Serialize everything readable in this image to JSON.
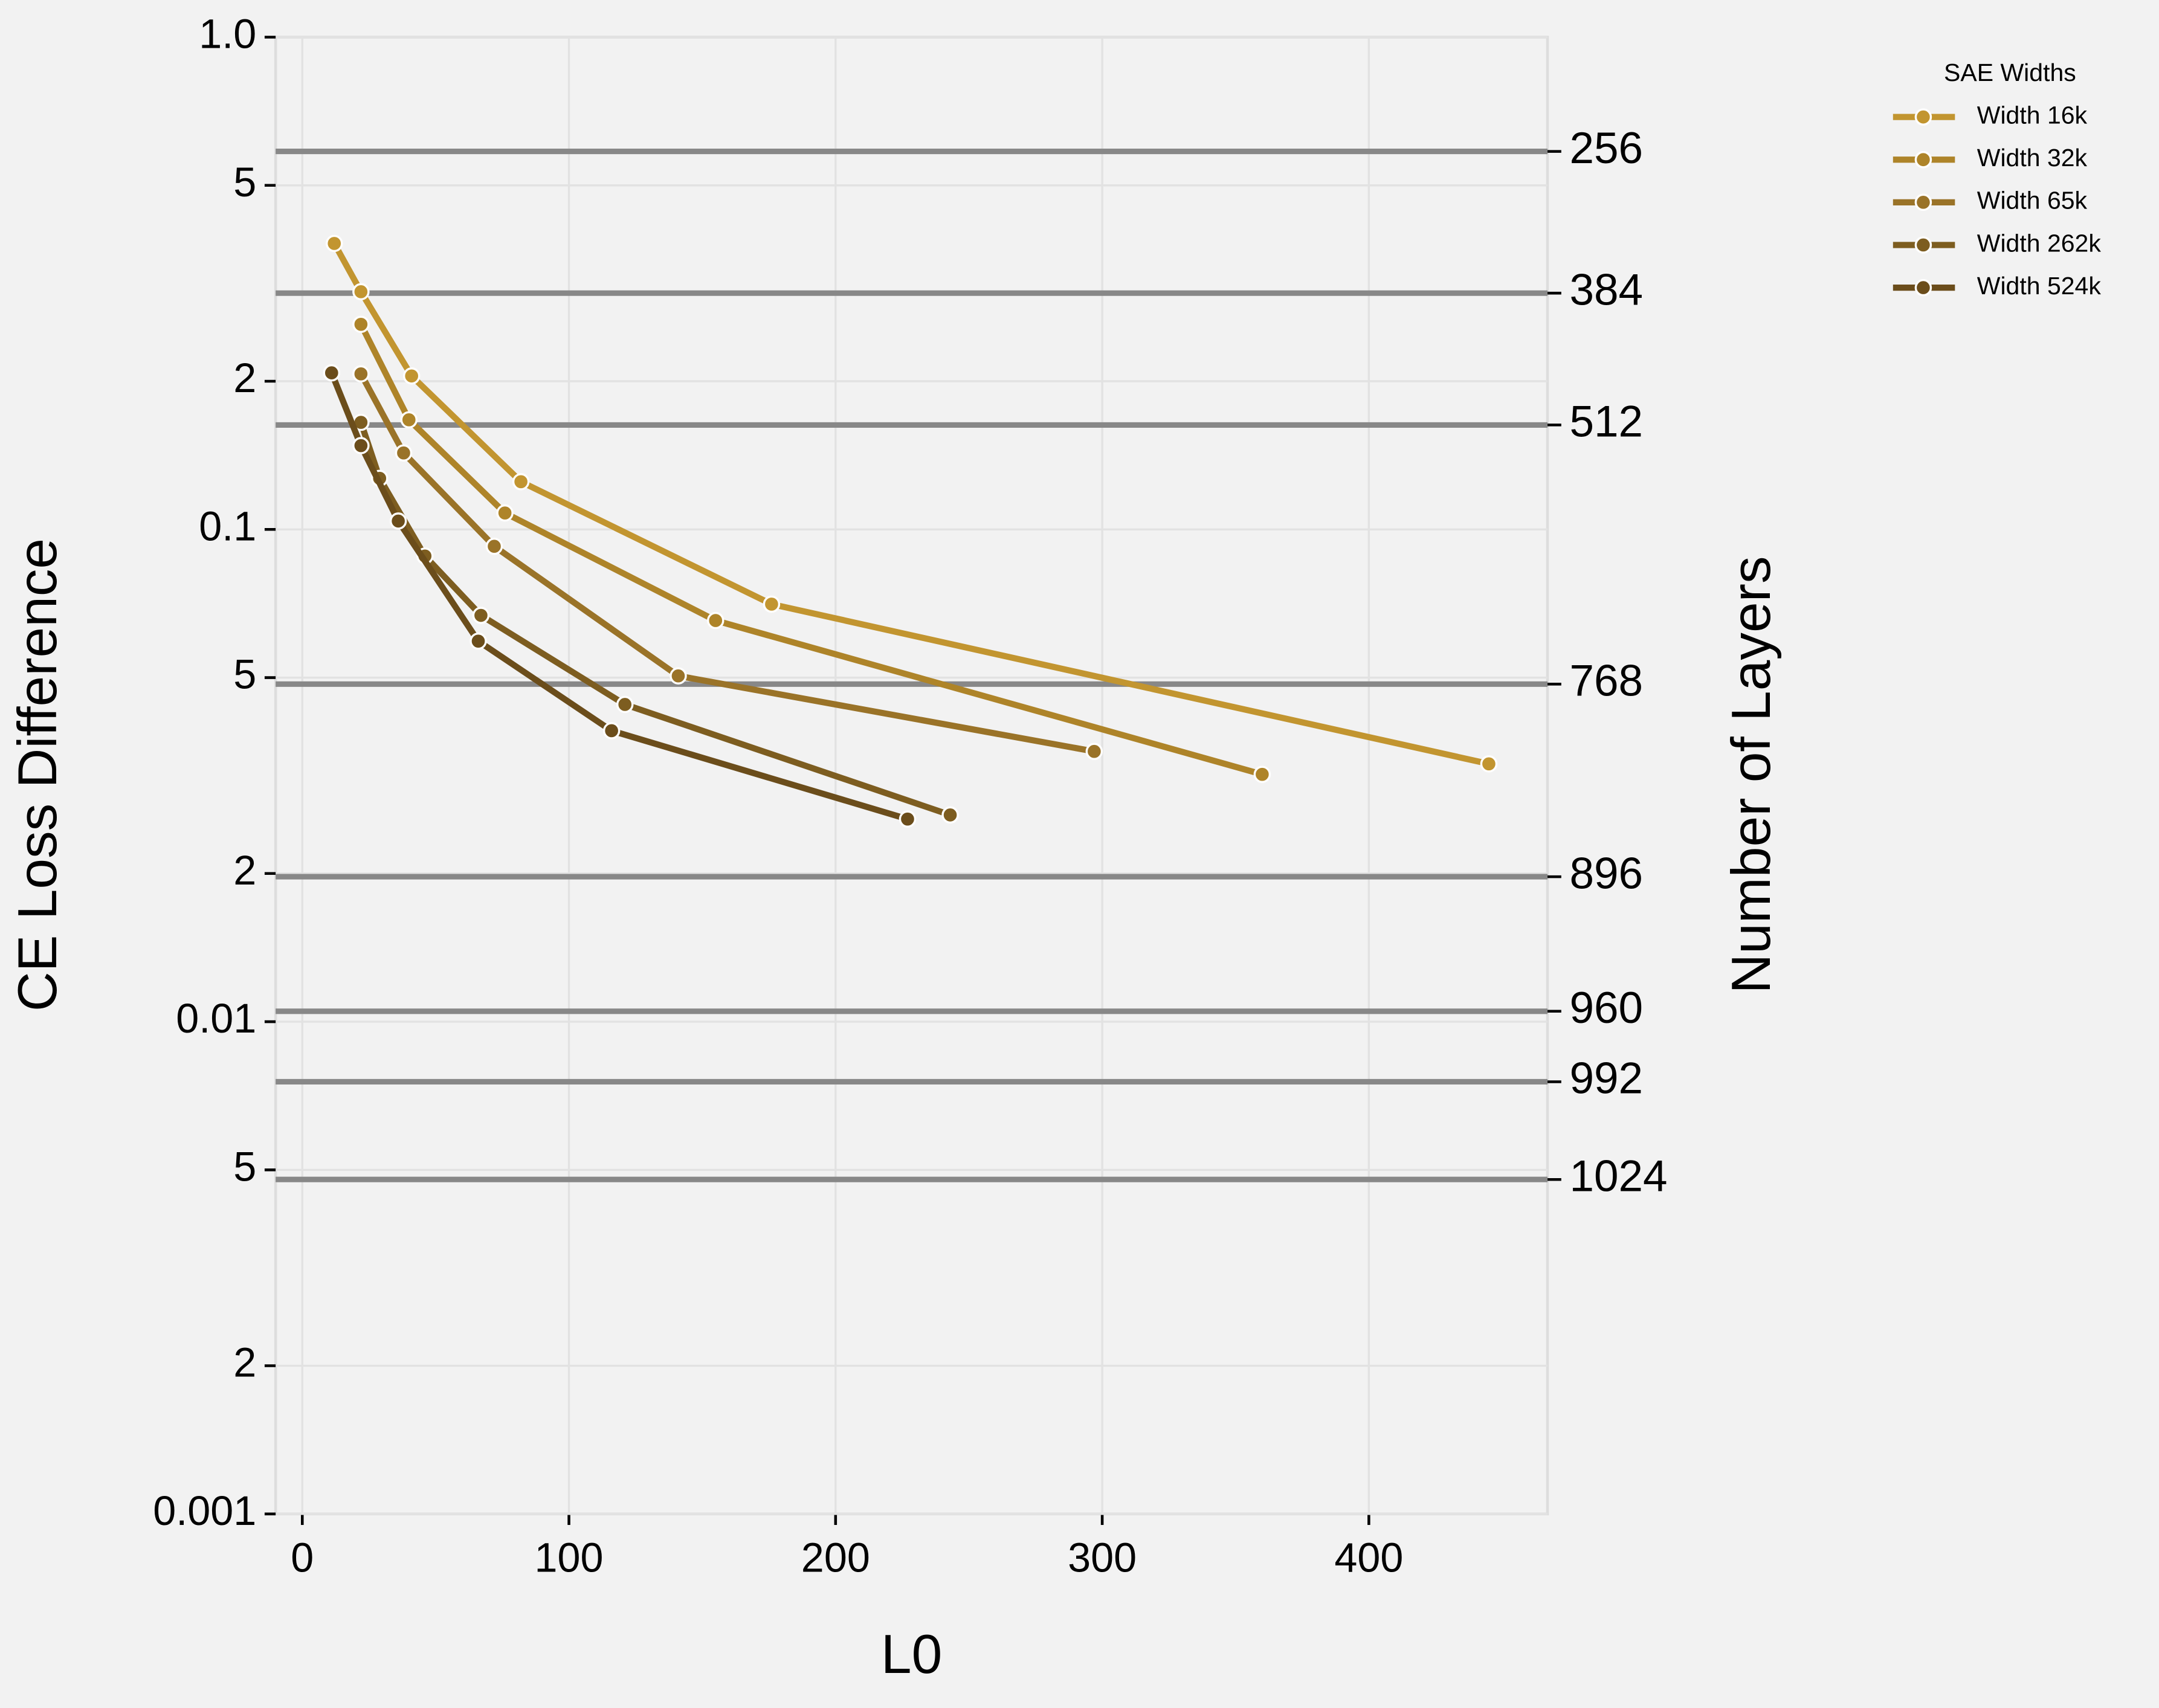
{
  "chart_data": {
    "type": "line",
    "xlabel": "L0",
    "ylabel": "CE Loss Difference",
    "y2label": "Number of Layers",
    "legend_title": "SAE Widths",
    "legend": "outside-right",
    "log_y": true,
    "grid": true,
    "xlim": [
      -10,
      467
    ],
    "xticks": [
      0,
      100,
      200,
      300,
      400
    ],
    "ylim": [
      0.001,
      1
    ],
    "yticks": [
      {
        "value": 1,
        "label": "1.0"
      },
      {
        "value": 0.5,
        "label": "5"
      },
      {
        "value": 0.2,
        "label": "2"
      },
      0.1,
      {
        "value": 0.05,
        "label": "5"
      },
      {
        "value": 0.02,
        "label": "2"
      },
      0.01,
      {
        "value": 0.005,
        "label": "5"
      },
      {
        "value": 0.002,
        "label": "2"
      },
      0.001
    ],
    "reference_lines": {
      "color": "#888888",
      "values": [
        0.586,
        0.302,
        0.163,
        0.0485,
        0.0197,
        0.0105,
        0.00755,
        0.00478
      ],
      "labels": [
        256,
        384,
        512,
        768,
        896,
        960,
        992,
        1024
      ]
    },
    "series": [
      {
        "name": "Width 16k",
        "color": "#c29530",
        "x": [
          12,
          22,
          41,
          82,
          176,
          445
        ],
        "values": [
          0.381,
          0.304,
          0.205,
          0.125,
          0.0705,
          0.0334
        ]
      },
      {
        "name": "Width 32k",
        "color": "#ae8429",
        "x": [
          22,
          40,
          76,
          155,
          360
        ],
        "values": [
          0.261,
          0.167,
          0.108,
          0.0653,
          0.0318
        ]
      },
      {
        "name": "Width 65k",
        "color": "#9a7328",
        "x": [
          22,
          38,
          72,
          141,
          297
        ],
        "values": [
          0.207,
          0.143,
          0.0924,
          0.0504,
          0.0354
        ]
      },
      {
        "name": "Width 262k",
        "color": "#7d5d20",
        "x": [
          22,
          29,
          46,
          67,
          121,
          243
        ],
        "values": [
          0.165,
          0.127,
          0.0883,
          0.0669,
          0.0441,
          0.0263
        ]
      },
      {
        "name": "Width 524k",
        "color": "#6b4d1b",
        "x": [
          11,
          22,
          36,
          66,
          116,
          227
        ],
        "values": [
          0.208,
          0.148,
          0.104,
          0.0593,
          0.039,
          0.0258
        ]
      }
    ]
  }
}
